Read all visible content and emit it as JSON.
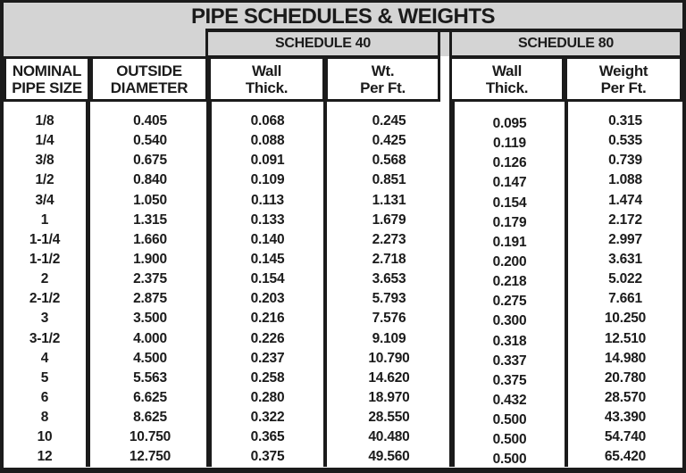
{
  "title": "PIPE SCHEDULES & WEIGHTS",
  "colors": {
    "header_bg": "#d4d4d4",
    "line": "#1b1b1b",
    "text": "#1b1b1b",
    "background": "#ffffff"
  },
  "schedules": {
    "sched40": "SCHEDULE 40",
    "sched80": "SCHEDULE 80"
  },
  "columns": [
    {
      "line1": "NOMINAL",
      "line2": "PIPE SIZE"
    },
    {
      "line1": "OUTSIDE",
      "line2": "DIAMETER"
    },
    {
      "line1": "Wall",
      "line2": "Thick."
    },
    {
      "line1": "Wt.",
      "line2": "Per Ft."
    },
    {
      "line1": "Wall",
      "line2": "Thick."
    },
    {
      "line1": "Weight",
      "line2": "Per Ft."
    }
  ],
  "rows": [
    [
      "1/8",
      "0.405",
      "0.068",
      "0.245",
      "0.095",
      "0.315"
    ],
    [
      "1/4",
      "0.540",
      "0.088",
      "0.425",
      "0.119",
      "0.535"
    ],
    [
      "3/8",
      "0.675",
      "0.091",
      "0.568",
      "0.126",
      "0.739"
    ],
    [
      "1/2",
      "0.840",
      "0.109",
      "0.851",
      "0.147",
      "1.088"
    ],
    [
      "3/4",
      "1.050",
      "0.113",
      "1.131",
      "0.154",
      "1.474"
    ],
    [
      "1",
      "1.315",
      "0.133",
      "1.679",
      "0.179",
      "2.172"
    ],
    [
      "1-1/4",
      "1.660",
      "0.140",
      "2.273",
      "0.191",
      "2.997"
    ],
    [
      "1-1/2",
      "1.900",
      "0.145",
      "2.718",
      "0.200",
      "3.631"
    ],
    [
      "2",
      "2.375",
      "0.154",
      "3.653",
      "0.218",
      "5.022"
    ],
    [
      "2-1/2",
      "2.875",
      "0.203",
      "5.793",
      "0.275",
      "7.661"
    ],
    [
      "3",
      "3.500",
      "0.216",
      "7.576",
      "0.300",
      "10.250"
    ],
    [
      "3-1/2",
      "4.000",
      "0.226",
      "9.109",
      "0.318",
      "12.510"
    ],
    [
      "4",
      "4.500",
      "0.237",
      "10.790",
      "0.337",
      "14.980"
    ],
    [
      "5",
      "5.563",
      "0.258",
      "14.620",
      "0.375",
      "20.780"
    ],
    [
      "6",
      "6.625",
      "0.280",
      "18.970",
      "0.432",
      "28.570"
    ],
    [
      "8",
      "8.625",
      "0.322",
      "28.550",
      "0.500",
      "43.390"
    ],
    [
      "10",
      "10.750",
      "0.365",
      "40.480",
      "0.500",
      "54.740"
    ],
    [
      "12",
      "12.750",
      "0.375",
      "49.560",
      "0.500",
      "65.420"
    ]
  ]
}
